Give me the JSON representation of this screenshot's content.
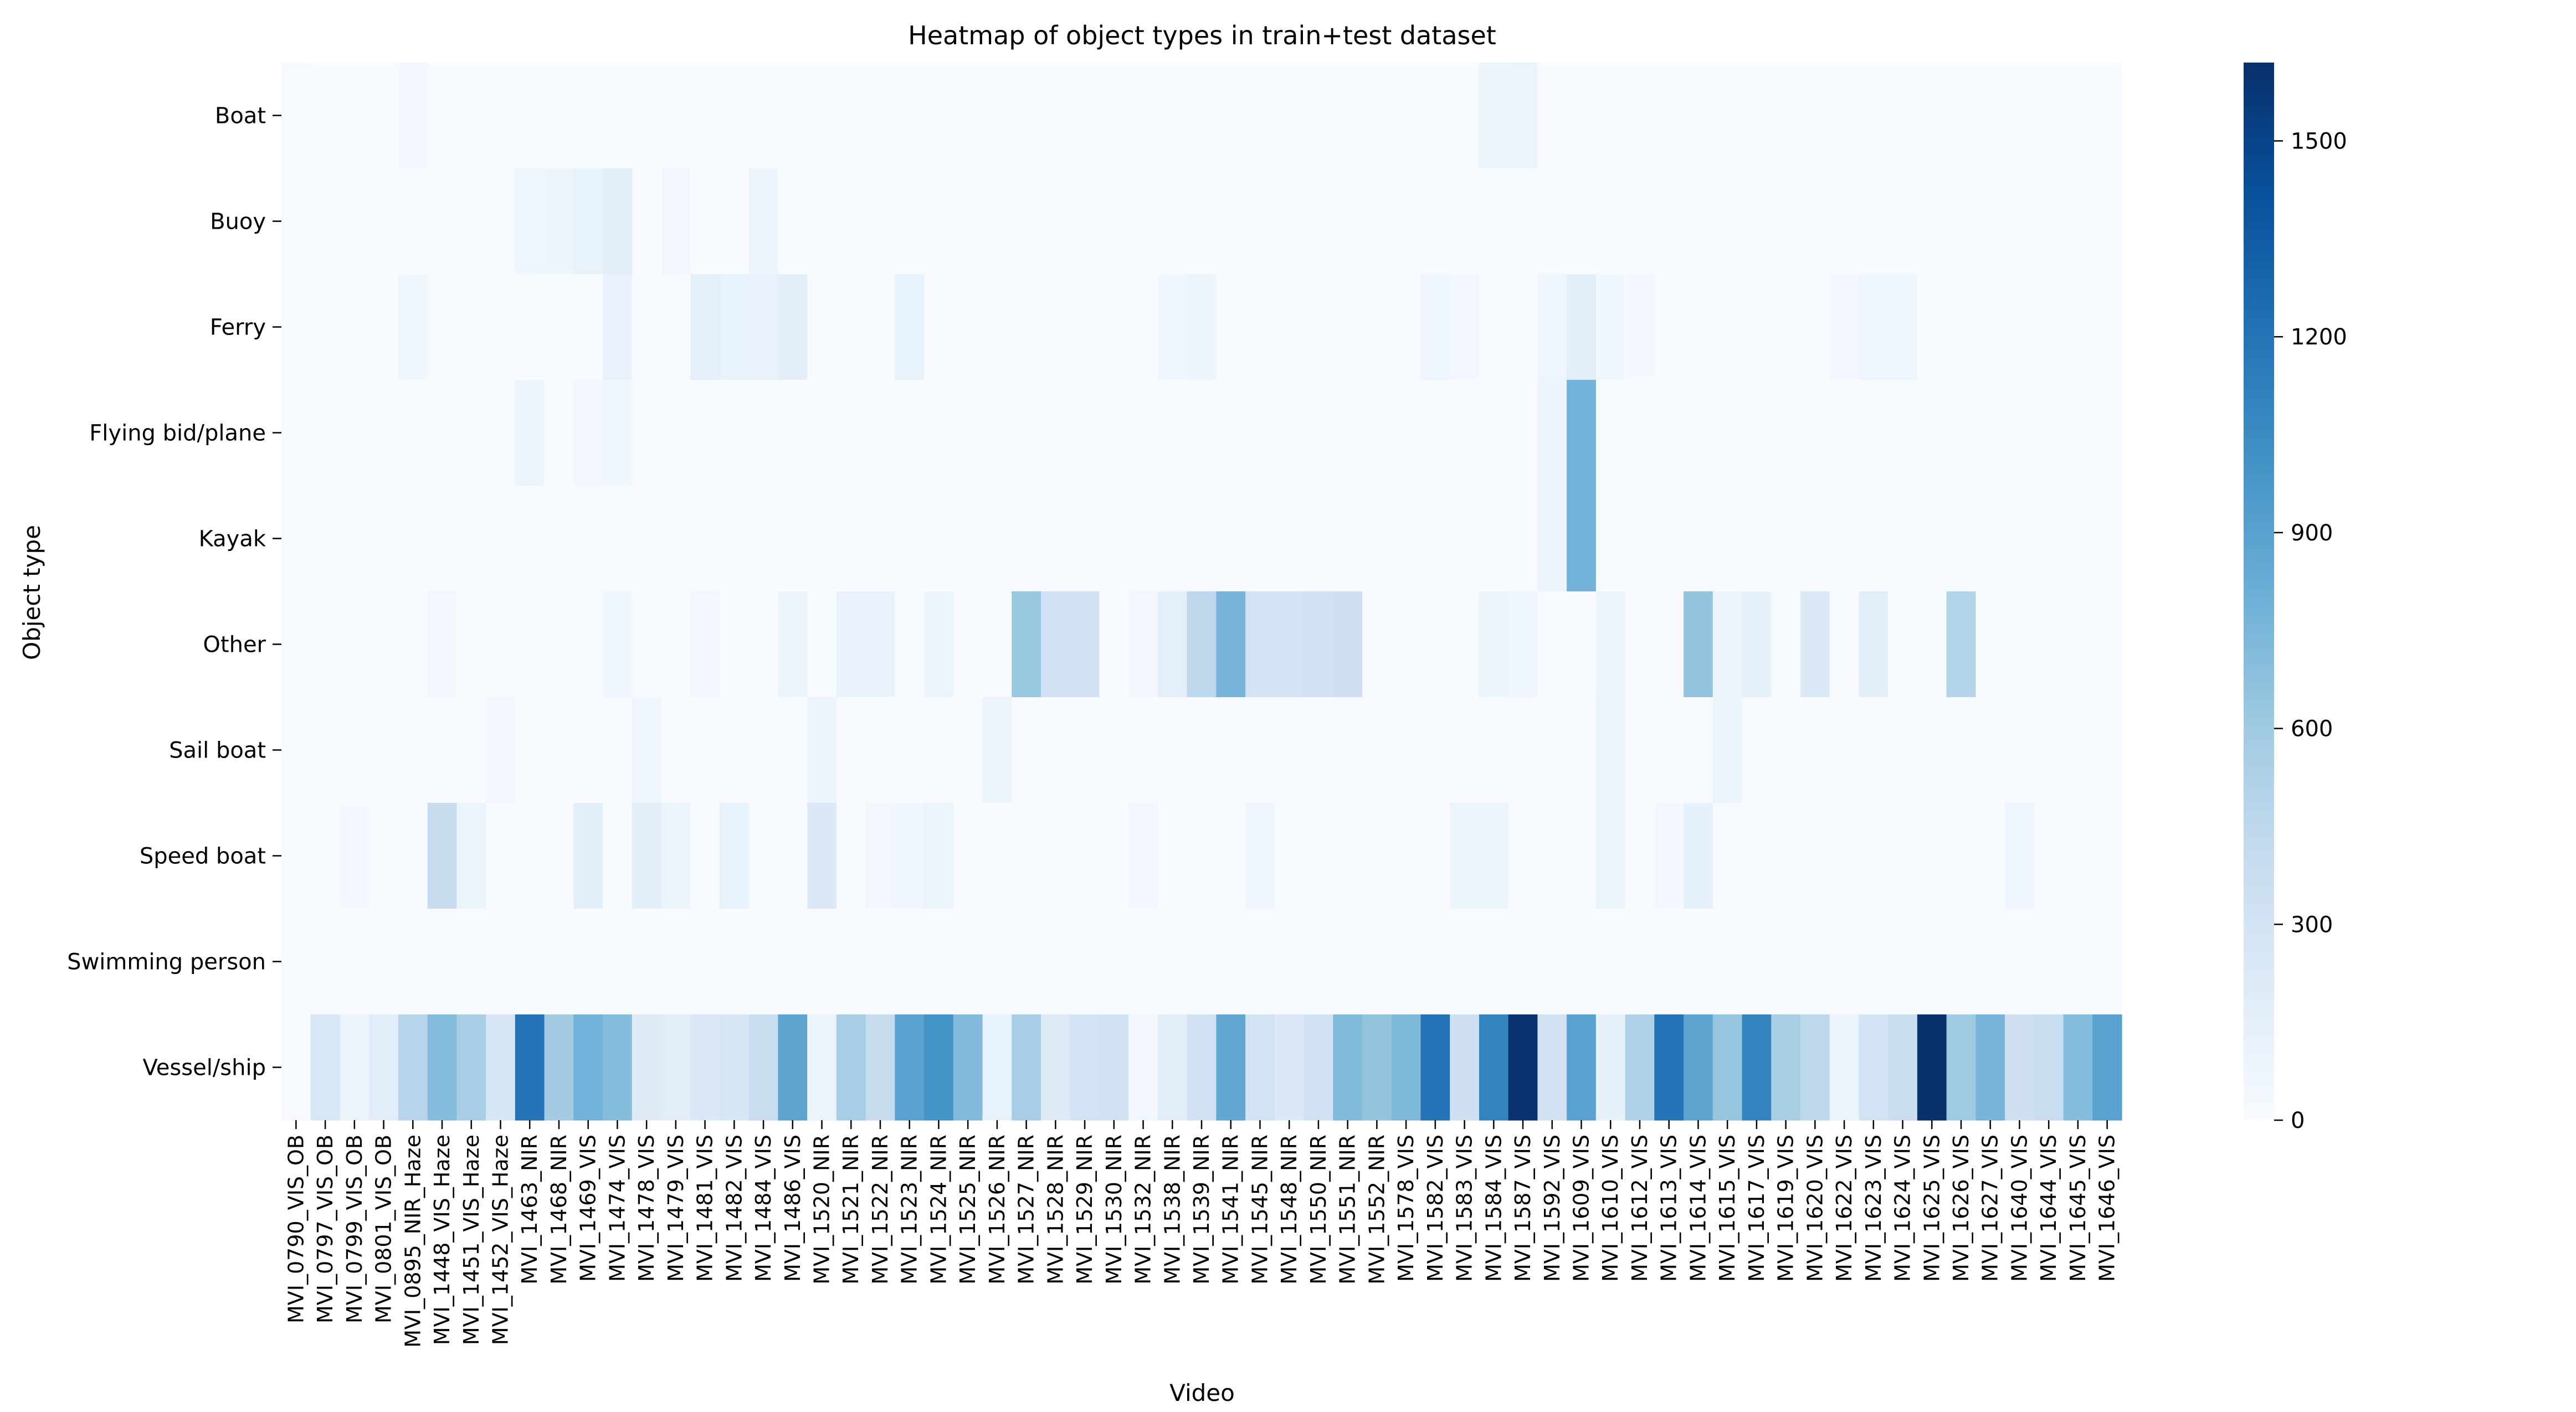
{
  "chart_data": {
    "type": "heatmap",
    "title": "Heatmap of object types in train+test dataset",
    "xlabel": "Video",
    "ylabel": "Object type",
    "rows": [
      "Boat",
      "Buoy",
      "Ferry",
      "Flying bid/plane",
      "Kayak",
      "Other",
      "Sail boat",
      "Speed boat",
      "Swimming person",
      "Vessel/ship"
    ],
    "columns": [
      "MVI_0790_VIS_OB",
      "MVI_0797_VIS_OB",
      "MVI_0799_VIS_OB",
      "MVI_0801_VIS_OB",
      "MVI_0895_NIR_Haze",
      "MVI_1448_VIS_Haze",
      "MVI_1451_VIS_Haze",
      "MVI_1452_VIS_Haze",
      "MVI_1463_NIR",
      "MVI_1468_NIR",
      "MVI_1469_VIS",
      "MVI_1474_VIS",
      "MVI_1478_VIS",
      "MVI_1479_VIS",
      "MVI_1481_VIS",
      "MVI_1482_VIS",
      "MVI_1484_VIS",
      "MVI_1486_VIS",
      "MVI_1520_NIR",
      "MVI_1521_NIR",
      "MVI_1522_NIR",
      "MVI_1523_NIR",
      "MVI_1524_NIR",
      "MVI_1525_NIR",
      "MVI_1526_NIR",
      "MVI_1527_NIR",
      "MVI_1528_NIR",
      "MVI_1529_NIR",
      "MVI_1530_NIR",
      "MVI_1532_NIR",
      "MVI_1538_NIR",
      "MVI_1539_NIR",
      "MVI_1541_NIR",
      "MVI_1545_NIR",
      "MVI_1548_NIR",
      "MVI_1550_NIR",
      "MVI_1551_NIR",
      "MVI_1552_NIR",
      "MVI_1578_VIS",
      "MVI_1582_VIS",
      "MVI_1583_VIS",
      "MVI_1584_VIS",
      "MVI_1587_VIS",
      "MVI_1592_VIS",
      "MVI_1609_VIS",
      "MVI_1610_VIS",
      "MVI_1612_VIS",
      "MVI_1613_VIS",
      "MVI_1614_VIS",
      "MVI_1615_VIS",
      "MVI_1617_VIS",
      "MVI_1619_VIS",
      "MVI_1620_VIS",
      "MVI_1622_VIS",
      "MVI_1623_VIS",
      "MVI_1624_VIS",
      "MVI_1625_VIS",
      "MVI_1626_VIS",
      "MVI_1627_VIS",
      "MVI_1640_VIS",
      "MVI_1644_VIS",
      "MVI_1645_VIS",
      "MVI_1646_VIS"
    ],
    "values": [
      [
        10,
        0,
        0,
        0,
        30,
        0,
        0,
        0,
        0,
        0,
        0,
        0,
        0,
        0,
        0,
        0,
        0,
        0,
        0,
        0,
        0,
        0,
        0,
        0,
        0,
        0,
        0,
        0,
        0,
        0,
        0,
        0,
        0,
        0,
        0,
        0,
        0,
        0,
        0,
        0,
        0,
        80,
        90,
        0,
        0,
        0,
        0,
        0,
        0,
        0,
        0,
        0,
        0,
        0,
        0,
        0,
        0,
        0,
        0,
        0,
        0,
        0,
        0
      ],
      [
        10,
        0,
        0,
        0,
        0,
        0,
        0,
        0,
        70,
        80,
        120,
        180,
        0,
        50,
        0,
        0,
        80,
        0,
        0,
        0,
        0,
        0,
        0,
        0,
        0,
        0,
        0,
        0,
        0,
        0,
        0,
        0,
        0,
        0,
        0,
        0,
        0,
        0,
        0,
        0,
        0,
        0,
        0,
        0,
        0,
        0,
        0,
        0,
        0,
        0,
        0,
        0,
        0,
        0,
        0,
        0,
        0,
        0,
        0,
        0,
        0,
        0,
        0
      ],
      [
        0,
        0,
        0,
        0,
        60,
        0,
        0,
        0,
        0,
        0,
        0,
        110,
        0,
        0,
        150,
        120,
        110,
        160,
        0,
        0,
        0,
        120,
        0,
        0,
        0,
        0,
        0,
        0,
        0,
        0,
        60,
        80,
        0,
        0,
        0,
        0,
        0,
        0,
        0,
        70,
        40,
        0,
        0,
        70,
        170,
        60,
        30,
        0,
        0,
        0,
        0,
        0,
        0,
        40,
        70,
        70,
        0,
        0,
        0,
        0,
        0,
        0,
        0
      ],
      [
        0,
        0,
        0,
        0,
        0,
        0,
        0,
        0,
        80,
        0,
        40,
        60,
        0,
        0,
        0,
        0,
        0,
        0,
        0,
        0,
        0,
        0,
        0,
        0,
        0,
        0,
        0,
        0,
        0,
        0,
        0,
        0,
        0,
        0,
        0,
        0,
        0,
        0,
        0,
        0,
        0,
        0,
        0,
        100,
        780,
        0,
        0,
        0,
        0,
        0,
        0,
        0,
        0,
        0,
        0,
        0,
        0,
        0,
        0,
        0,
        0,
        0,
        0
      ],
      [
        0,
        0,
        0,
        0,
        0,
        0,
        0,
        0,
        0,
        0,
        0,
        0,
        0,
        0,
        0,
        0,
        0,
        0,
        0,
        0,
        0,
        0,
        0,
        0,
        0,
        0,
        0,
        0,
        0,
        0,
        0,
        0,
        0,
        0,
        0,
        0,
        0,
        0,
        0,
        0,
        0,
        0,
        0,
        100,
        780,
        0,
        0,
        0,
        0,
        0,
        0,
        0,
        0,
        0,
        0,
        0,
        0,
        0,
        0,
        0,
        0,
        0,
        0
      ],
      [
        0,
        0,
        0,
        0,
        0,
        50,
        0,
        0,
        0,
        0,
        0,
        60,
        0,
        0,
        50,
        0,
        0,
        80,
        0,
        110,
        110,
        0,
        80,
        0,
        0,
        630,
        330,
        330,
        0,
        50,
        150,
        450,
        760,
        300,
        300,
        330,
        340,
        0,
        0,
        0,
        0,
        80,
        60,
        0,
        0,
        80,
        0,
        0,
        650,
        100,
        130,
        0,
        230,
        0,
        160,
        0,
        0,
        500,
        0,
        0,
        0,
        0,
        0
      ],
      [
        0,
        0,
        0,
        0,
        0,
        0,
        0,
        50,
        0,
        0,
        0,
        0,
        70,
        0,
        0,
        0,
        0,
        0,
        80,
        0,
        0,
        0,
        0,
        0,
        80,
        0,
        0,
        0,
        0,
        0,
        0,
        0,
        0,
        0,
        0,
        0,
        0,
        0,
        0,
        0,
        0,
        0,
        0,
        0,
        0,
        90,
        0,
        0,
        0,
        100,
        0,
        0,
        0,
        0,
        0,
        0,
        0,
        0,
        0,
        0,
        0,
        0,
        0
      ],
      [
        0,
        0,
        30,
        0,
        0,
        400,
        100,
        0,
        0,
        0,
        160,
        0,
        160,
        100,
        0,
        120,
        0,
        0,
        230,
        0,
        50,
        60,
        100,
        0,
        0,
        0,
        0,
        0,
        0,
        50,
        0,
        0,
        0,
        70,
        0,
        0,
        0,
        0,
        0,
        0,
        80,
        100,
        0,
        0,
        0,
        100,
        0,
        40,
        130,
        0,
        0,
        0,
        0,
        0,
        0,
        0,
        0,
        0,
        0,
        70,
        0,
        0,
        0
      ],
      [
        0,
        0,
        0,
        0,
        0,
        0,
        0,
        0,
        0,
        0,
        0,
        0,
        0,
        0,
        0,
        0,
        0,
        0,
        0,
        0,
        0,
        0,
        0,
        0,
        0,
        0,
        0,
        0,
        0,
        0,
        0,
        0,
        0,
        0,
        0,
        0,
        0,
        0,
        0,
        0,
        0,
        0,
        0,
        0,
        0,
        0,
        0,
        0,
        0,
        0,
        0,
        0,
        0,
        0,
        0,
        0,
        0,
        0,
        0,
        0,
        0,
        0,
        0
      ],
      [
        10,
        250,
        100,
        180,
        480,
        700,
        560,
        260,
        1200,
        580,
        780,
        700,
        200,
        180,
        240,
        260,
        380,
        880,
        100,
        560,
        400,
        900,
        1000,
        720,
        120,
        560,
        200,
        300,
        330,
        50,
        180,
        320,
        860,
        300,
        230,
        330,
        720,
        650,
        740,
        1200,
        340,
        1100,
        1600,
        320,
        900,
        130,
        520,
        1200,
        880,
        640,
        1100,
        550,
        450,
        100,
        300,
        380,
        1620,
        600,
        760,
        350,
        380,
        700,
        900
      ]
    ],
    "colorbar": {
      "min": 0,
      "max": 1620,
      "ticks": [
        0,
        300,
        600,
        900,
        1200,
        1500
      ],
      "colors": [
        "#f7fbff",
        "#deebf7",
        "#c6dbef",
        "#9ecae1",
        "#6baed6",
        "#4292c6",
        "#2171b5",
        "#08519c",
        "#08306b"
      ]
    }
  }
}
